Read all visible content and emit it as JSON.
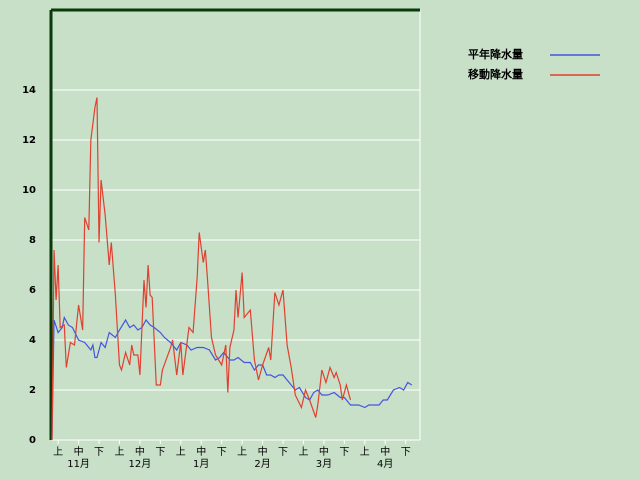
{
  "chart_data": {
    "type": "line",
    "xlim": [
      0,
      180
    ],
    "ylim": [
      0,
      17.2
    ],
    "yticks": [
      0,
      2,
      4,
      6,
      8,
      10,
      12,
      14
    ],
    "xticks": [
      {
        "value": 3,
        "label": "上"
      },
      {
        "value": 13,
        "label": "中"
      },
      {
        "value": 23,
        "label": "下"
      },
      {
        "value": 33,
        "label": "上"
      },
      {
        "value": 43,
        "label": "中"
      },
      {
        "value": 53,
        "label": "下"
      },
      {
        "value": 63,
        "label": "上"
      },
      {
        "value": 73,
        "label": "中"
      },
      {
        "value": 83,
        "label": "下"
      },
      {
        "value": 93,
        "label": "上"
      },
      {
        "value": 103,
        "label": "中"
      },
      {
        "value": 113,
        "label": "下"
      },
      {
        "value": 123,
        "label": "上"
      },
      {
        "value": 133,
        "label": "中"
      },
      {
        "value": 143,
        "label": "下"
      },
      {
        "value": 153,
        "label": "上"
      },
      {
        "value": 163,
        "label": "中"
      },
      {
        "value": 173,
        "label": "下"
      }
    ],
    "month_ticks": [
      {
        "value": 13,
        "label": "11月"
      },
      {
        "value": 43,
        "label": "12月"
      },
      {
        "value": 73,
        "label": "1月"
      },
      {
        "value": 103,
        "label": "2月"
      },
      {
        "value": 133,
        "label": "3月"
      },
      {
        "value": 163,
        "label": "4月"
      }
    ],
    "grid": true,
    "series": [
      {
        "name": "平年降水量",
        "color": "#4455dd",
        "x": [
          0,
          1,
          3,
          5,
          6,
          8,
          10,
          13,
          16,
          19,
          20,
          21,
          22,
          24,
          26,
          28,
          31,
          33,
          36,
          38,
          40,
          42,
          44,
          46,
          48,
          50,
          53,
          55,
          58,
          61,
          63,
          66,
          68,
          71,
          74,
          77,
          80,
          82,
          84,
          87,
          89,
          91,
          94,
          97,
          99,
          101,
          103,
          105,
          107,
          109,
          111,
          113,
          116,
          119,
          121,
          124,
          126,
          128,
          130,
          132,
          135,
          138,
          141,
          143,
          146,
          150,
          153,
          155,
          160,
          162,
          164,
          167,
          170,
          172,
          174,
          176
        ],
        "values": [
          0,
          4.8,
          4.3,
          4.5,
          4.9,
          4.6,
          4.5,
          4.0,
          3.9,
          3.6,
          3.8,
          3.3,
          3.3,
          3.9,
          3.7,
          4.3,
          4.1,
          4.4,
          4.8,
          4.5,
          4.6,
          4.4,
          4.5,
          4.8,
          4.6,
          4.5,
          4.3,
          4.1,
          3.9,
          3.6,
          3.9,
          3.8,
          3.6,
          3.7,
          3.7,
          3.6,
          3.2,
          3.3,
          3.5,
          3.2,
          3.2,
          3.3,
          3.1,
          3.1,
          2.8,
          3.0,
          3.0,
          2.6,
          2.6,
          2.5,
          2.6,
          2.6,
          2.3,
          2.0,
          2.1,
          1.7,
          1.6,
          1.9,
          2.0,
          1.8,
          1.8,
          1.9,
          1.7,
          1.7,
          1.4,
          1.4,
          1.3,
          1.4,
          1.4,
          1.6,
          1.6,
          2.0,
          2.1,
          2.0,
          2.3,
          2.2
        ]
      },
      {
        "name": "移動降水量",
        "color": "#e04030",
        "x": [
          0,
          1,
          2,
          3,
          4,
          6,
          7,
          9,
          11,
          13,
          15,
          16,
          18,
          19,
          21,
          22,
          23,
          24,
          26,
          28,
          29,
          31,
          33,
          34,
          36,
          38,
          39,
          40,
          42,
          43,
          45,
          46,
          47,
          48,
          49,
          51,
          53,
          54,
          58,
          59,
          61,
          63,
          64,
          67,
          69,
          71,
          72,
          74,
          75,
          76,
          78,
          80,
          83,
          85,
          86,
          87,
          89,
          90,
          91,
          93,
          94,
          97,
          99,
          101,
          103,
          106,
          107,
          109,
          111,
          113,
          115,
          117,
          119,
          122,
          124,
          126,
          129,
          130,
          132,
          134,
          136,
          138,
          139,
          141,
          142,
          144,
          146
        ],
        "values": [
          0,
          7.6,
          5.6,
          7.0,
          4.5,
          4.6,
          2.9,
          3.9,
          3.8,
          5.4,
          4.4,
          8.9,
          8.4,
          12,
          13.3,
          13.7,
          7.9,
          10.4,
          9.0,
          7.0,
          7.9,
          5.8,
          3.0,
          2.8,
          3.5,
          3.0,
          3.8,
          3.4,
          3.4,
          2.6,
          6.4,
          5.3,
          7.0,
          5.8,
          5.7,
          2.2,
          2.2,
          2.8,
          3.7,
          4.0,
          2.6,
          3.9,
          2.6,
          4.5,
          4.3,
          6.5,
          8.3,
          7.1,
          7.6,
          6.5,
          4.1,
          3.4,
          3.0,
          3.8,
          1.9,
          3.7,
          4.4,
          6.0,
          4.9,
          6.7,
          4.9,
          5.2,
          3.2,
          2.4,
          3.0,
          3.7,
          3.2,
          5.9,
          5.4,
          6.0,
          3.8,
          2.9,
          1.8,
          1.3,
          2.0,
          1.6,
          0.9,
          1.4,
          2.8,
          2.3,
          2.9,
          2.5,
          2.7,
          2.2,
          1.6,
          2.2,
          1.6
        ]
      }
    ]
  }
}
